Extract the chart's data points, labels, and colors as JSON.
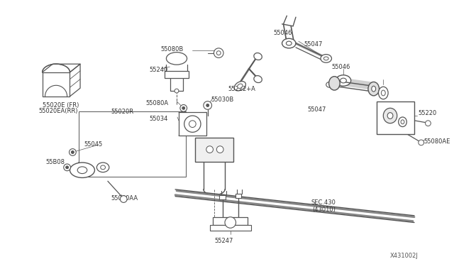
{
  "bg_color": "#ffffff",
  "lc": "#555555",
  "tc": "#333333",
  "diagram_id": "X431002J",
  "figw": 6.4,
  "figh": 3.72,
  "dpi": 100,
  "xlim": [
    0,
    640
  ],
  "ylim": [
    0,
    372
  ]
}
